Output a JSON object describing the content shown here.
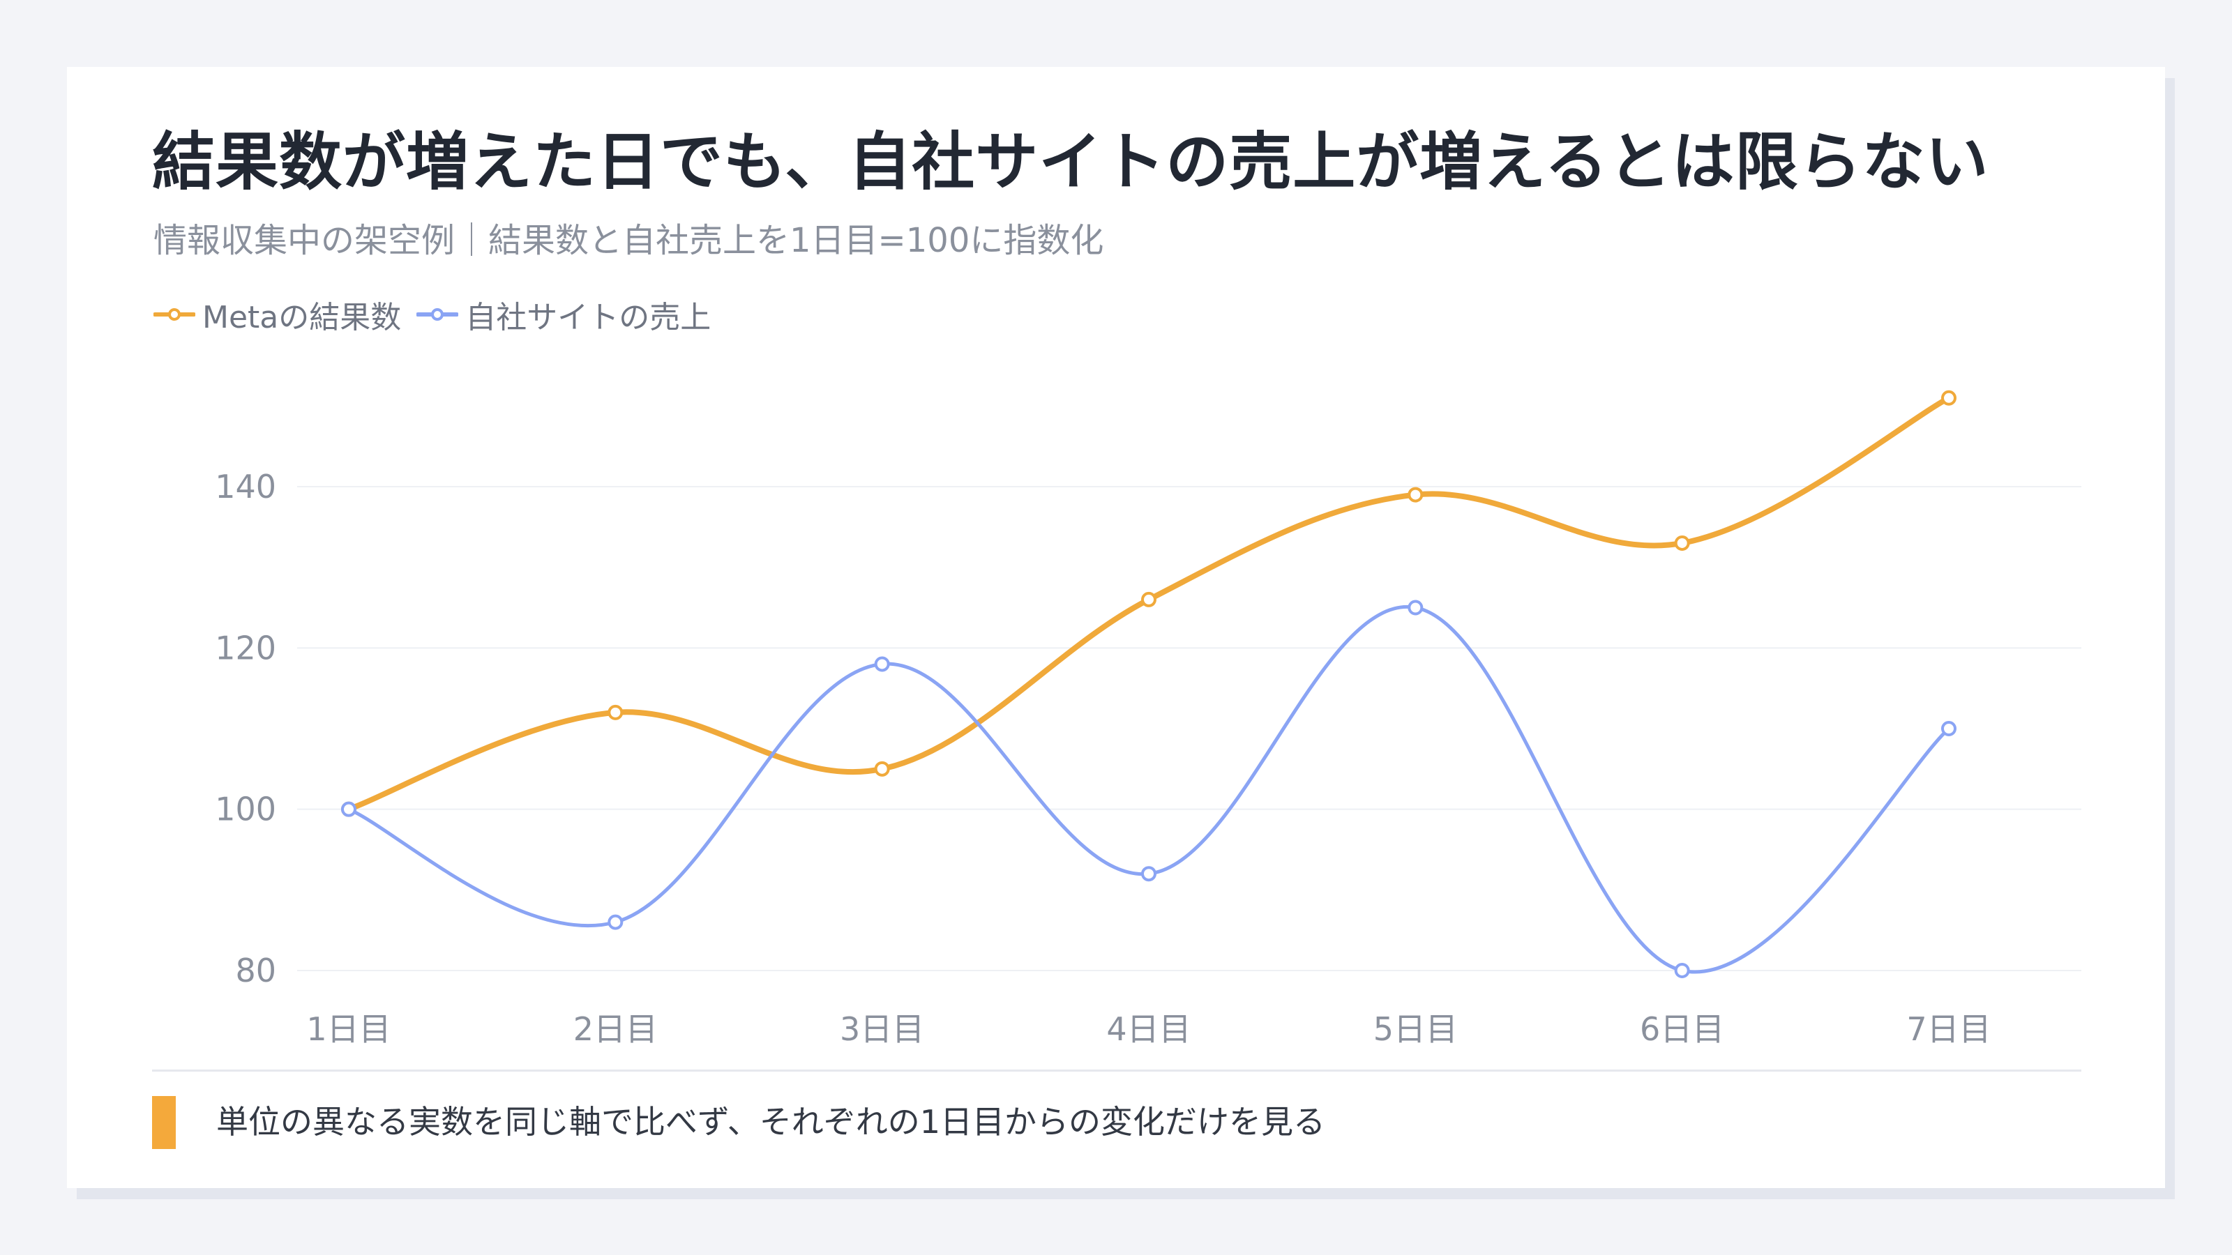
{
  "chart_data": {
    "type": "line",
    "title": "結果数が増えた日でも、自社サイトの売上が増えるとは限らない",
    "subtitle": "情報収集中の架空例｜結果数と自社売上を1日目=100に指数化",
    "categories": [
      "1日目",
      "2日目",
      "3日目",
      "4日目",
      "5日目",
      "6日目",
      "7日目"
    ],
    "series": [
      {
        "name": "Metaの結果数",
        "color": "#f0a93a",
        "values": [
          100,
          112,
          105,
          126,
          139,
          133,
          151
        ]
      },
      {
        "name": "自社サイトの売上",
        "color": "#8aa4f4",
        "values": [
          100,
          86,
          118,
          92,
          125,
          80,
          110
        ]
      }
    ],
    "yticks": [
      80,
      100,
      120,
      140
    ],
    "ylim": [
      80,
      151
    ],
    "grid": true,
    "legend_position": "top-left",
    "xlabel": "",
    "ylabel": ""
  },
  "footnote": "単位の異なる実数を同じ軸で比べず、それぞれの1日目からの変化だけを見る",
  "colors": {
    "accent": "#f4a93b",
    "background": "#f3f4f8",
    "card": "#ffffff"
  }
}
